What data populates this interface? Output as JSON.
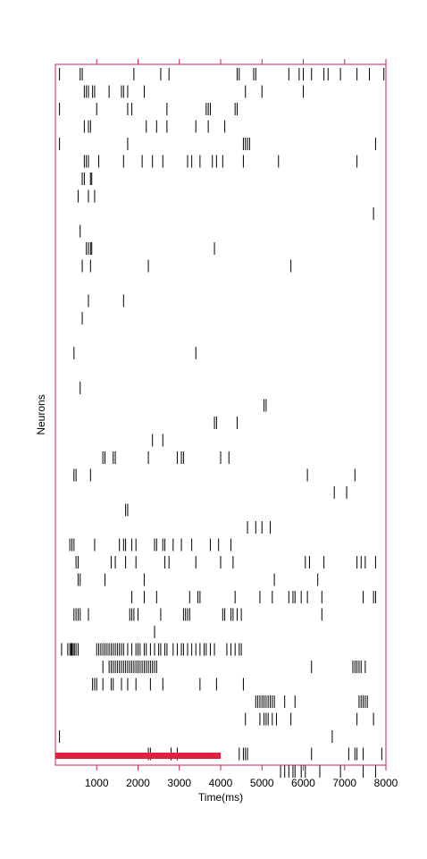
{
  "chart_data": {
    "type": "scatter",
    "title": "",
    "xlabel": "Time(ms)",
    "ylabel": "Neurons",
    "xlim": [
      0,
      8000
    ],
    "x_ticks": [
      "1000",
      "2000",
      "3000",
      "4000",
      "5000",
      "6000",
      "7000",
      "8000"
    ],
    "grid": false,
    "colors": {
      "frame": "#d0204a",
      "spikes": "#000000",
      "stimulus_bar": "#e0203c"
    },
    "stimulus_interval_ms": [
      0,
      4000
    ],
    "neuron_count": 41,
    "spike_trains": [
      [
        100,
        600,
        650,
        1900,
        2550,
        2750,
        4400,
        4450,
        4800,
        4850,
        5650,
        5900,
        6000,
        6200,
        6500,
        6600,
        6900,
        7300,
        7600,
        7950
      ],
      [
        700,
        750,
        800,
        900,
        950,
        1300,
        1600,
        1650,
        1750,
        2150,
        4600,
        5000,
        6000
      ],
      [
        100,
        1000,
        1750,
        1850,
        2700,
        3650,
        3700,
        3750,
        4350,
        4400
      ],
      [
        700,
        800,
        850,
        2200,
        2450,
        2700,
        3400,
        3700,
        4100
      ],
      [
        100,
        1750,
        4550,
        4600,
        4650,
        4700,
        7750
      ],
      [
        700,
        750,
        800,
        1050,
        1650,
        2100,
        2350,
        2600,
        3200,
        3300,
        3500,
        3800,
        3900,
        4050,
        4550,
        5400,
        7300
      ],
      [
        650,
        700,
        850,
        880
      ],
      [
        550,
        800,
        950
      ],
      [
        7700
      ],
      [
        600
      ],
      [
        750,
        800,
        850,
        880,
        3850
      ],
      [
        650,
        850,
        2250,
        5700
      ],
      [],
      [
        800,
        1650
      ],
      [
        650
      ],
      [],
      [
        450,
        3400
      ],
      [],
      [
        600
      ],
      [
        5050,
        5100
      ],
      [
        3850,
        3900,
        4400
      ],
      [
        2350,
        2600
      ],
      [
        1150,
        1200,
        1400,
        1450,
        2250,
        2950,
        3050,
        3100,
        4000,
        4200
      ],
      [
        450,
        500,
        850,
        6100,
        7250
      ],
      [
        6750,
        7050
      ],
      [
        1700,
        1750
      ],
      [
        4650,
        4850,
        5000,
        5200
      ],
      [
        350,
        400,
        450,
        950,
        1550,
        1650,
        1700,
        1850,
        1950,
        2400,
        2450,
        2600,
        2650,
        2850,
        3050,
        3300,
        3750,
        3950,
        4250
      ],
      [
        500,
        550,
        1350,
        1450,
        1700,
        1950,
        2650,
        2750,
        3400,
        4000,
        4300,
        6050,
        6150,
        6500,
        7300,
        7400,
        7500,
        7750
      ],
      [
        550,
        600,
        1200,
        2150,
        5300,
        6350
      ],
      [
        1850,
        2150,
        2450,
        3250,
        3450,
        3500,
        4350,
        4950,
        5250,
        5650,
        5750,
        5800,
        5950,
        6100,
        6450,
        7450,
        7700,
        7750
      ],
      [
        450,
        500,
        550,
        600,
        800,
        1800,
        1850,
        1900,
        2000,
        2550,
        3100,
        3150,
        3200,
        3250,
        4050,
        4100,
        4250,
        4300,
        4400,
        4500,
        6450
      ],
      [
        2400
      ],
      [
        150,
        300,
        350,
        380,
        400,
        430,
        460,
        500,
        550,
        1000,
        1050,
        1100,
        1150,
        1200,
        1250,
        1300,
        1350,
        1400,
        1450,
        1500,
        1550,
        1600,
        1650,
        1750,
        1850,
        1950,
        2000,
        2050,
        2150,
        2200,
        2300,
        2400,
        2500,
        2550,
        2650,
        2700,
        2850,
        2950,
        3050,
        3100,
        3200,
        3300,
        3400,
        3500,
        3600,
        3650,
        3750,
        3850,
        4150,
        4250,
        4350,
        4450,
        4500
      ],
      [
        1150,
        1300,
        1350,
        1400,
        1450,
        1500,
        1550,
        1600,
        1650,
        1700,
        1750,
        1800,
        1850,
        1900,
        1950,
        2000,
        2050,
        2100,
        2150,
        2200,
        2250,
        2300,
        2350,
        2400,
        2450,
        6200,
        7200,
        7250,
        7300,
        7350,
        7400,
        7500
      ],
      [
        900,
        950,
        1000,
        1150,
        1350,
        1400,
        1600,
        1750,
        1950,
        2300,
        2600,
        3500,
        3900,
        4550
      ],
      [
        4850,
        4900,
        4950,
        5000,
        5050,
        5100,
        5150,
        5200,
        5250,
        5300,
        5550,
        5800,
        7350,
        7400,
        7450,
        7500,
        7550
      ],
      [
        4600,
        4950,
        5050,
        5100,
        5150,
        5250,
        5350,
        5700,
        7300,
        7700
      ],
      [
        100,
        6700
      ],
      [
        2250,
        2300,
        2800,
        2950,
        4450,
        4550,
        4600,
        4650,
        6200,
        7100,
        7250,
        7300,
        7450,
        7900
      ],
      [
        5450,
        5550,
        5650,
        5750,
        5800,
        5950,
        6050,
        6400,
        6900,
        7450,
        7750
      ]
    ]
  }
}
